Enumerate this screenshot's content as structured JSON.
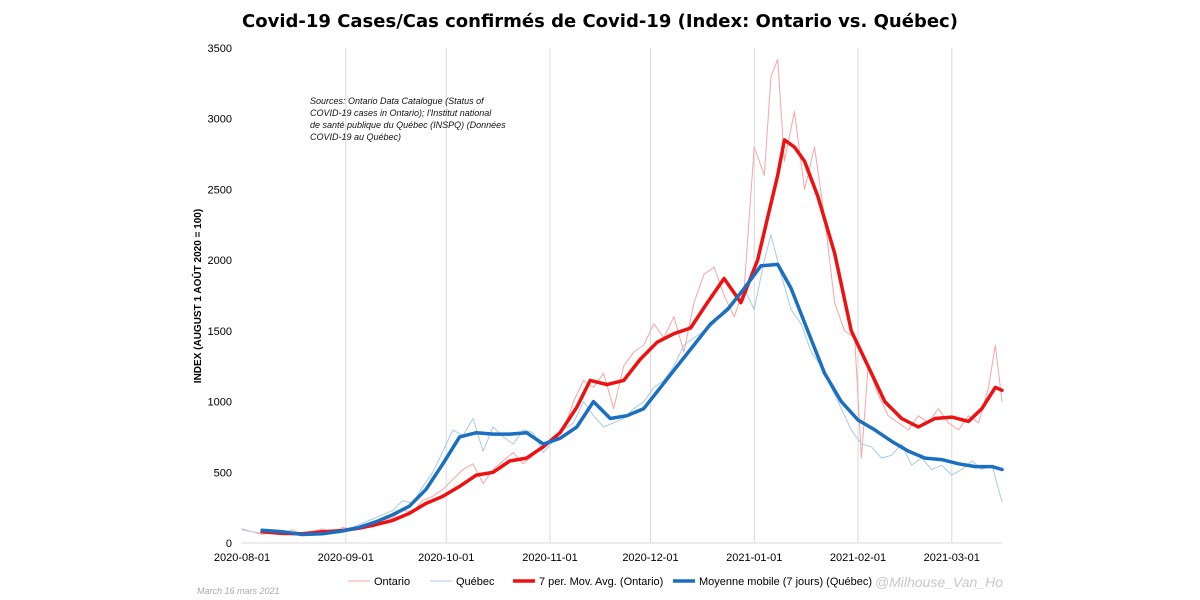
{
  "chart_data": {
    "type": "line",
    "title": "Covid-19 Cases/Cas confirmés de Covid-19 (Index: Ontario vs. Québec)",
    "ylabel": "INDEX (AUGUST 1 AOÛT 2020 = 100)",
    "xlabel": "",
    "ylim": [
      0,
      3500
    ],
    "xlim": [
      "2020-08-01",
      "2021-03-16"
    ],
    "yticks": [
      0,
      500,
      1000,
      1500,
      2000,
      2500,
      3000,
      3500
    ],
    "xticks": [
      "2020-08-01",
      "2020-09-01",
      "2020-10-01",
      "2020-11-01",
      "2020-12-01",
      "2021-01-01",
      "2021-02-01",
      "2021-03-01"
    ],
    "grid": "vertical",
    "legend_position": "bottom",
    "source_note": "Sources: Ontario Data Catalogue (Status of COVID-19 cases in Ontario); l'Institut national de santé publique du Québec (INSPQ) (Données COVID-19 au Québec)",
    "date_note": "March 16 mars 2021",
    "credit": "@Milhouse_Van_Ho",
    "colors": {
      "ontario_daily": "#f4a6a6",
      "quebec_daily": "#a9c9e8",
      "ontario_avg": "#ee1111",
      "quebec_avg": "#1a6fc0"
    },
    "series": [
      {
        "name": "Ontario",
        "key": "ontario_daily",
        "width": 1,
        "points": [
          [
            "2020-08-01",
            100
          ],
          [
            "2020-08-04",
            80
          ],
          [
            "2020-08-07",
            60
          ],
          [
            "2020-08-10",
            90
          ],
          [
            "2020-08-13",
            60
          ],
          [
            "2020-08-16",
            95
          ],
          [
            "2020-08-19",
            55
          ],
          [
            "2020-08-22",
            80
          ],
          [
            "2020-08-25",
            100
          ],
          [
            "2020-08-28",
            70
          ],
          [
            "2020-08-31",
            110
          ],
          [
            "2020-09-03",
            95
          ],
          [
            "2020-09-06",
            130
          ],
          [
            "2020-09-09",
            110
          ],
          [
            "2020-09-12",
            160
          ],
          [
            "2020-09-15",
            180
          ],
          [
            "2020-09-18",
            230
          ],
          [
            "2020-09-21",
            220
          ],
          [
            "2020-09-24",
            300
          ],
          [
            "2020-09-27",
            330
          ],
          [
            "2020-09-30",
            380
          ],
          [
            "2020-10-03",
            450
          ],
          [
            "2020-10-06",
            520
          ],
          [
            "2020-10-09",
            560
          ],
          [
            "2020-10-12",
            420
          ],
          [
            "2020-10-15",
            520
          ],
          [
            "2020-10-18",
            580
          ],
          [
            "2020-10-21",
            640
          ],
          [
            "2020-10-24",
            560
          ],
          [
            "2020-10-27",
            620
          ],
          [
            "2020-10-30",
            700
          ],
          [
            "2020-11-02",
            720
          ],
          [
            "2020-11-05",
            800
          ],
          [
            "2020-11-08",
            1000
          ],
          [
            "2020-11-11",
            1150
          ],
          [
            "2020-11-14",
            1100
          ],
          [
            "2020-11-17",
            1200
          ],
          [
            "2020-11-20",
            950
          ],
          [
            "2020-11-23",
            1250
          ],
          [
            "2020-11-26",
            1350
          ],
          [
            "2020-11-29",
            1400
          ],
          [
            "2020-12-02",
            1550
          ],
          [
            "2020-12-05",
            1450
          ],
          [
            "2020-12-08",
            1600
          ],
          [
            "2020-12-11",
            1350
          ],
          [
            "2020-12-14",
            1700
          ],
          [
            "2020-12-17",
            1900
          ],
          [
            "2020-12-20",
            1950
          ],
          [
            "2020-12-23",
            1750
          ],
          [
            "2020-12-26",
            1600
          ],
          [
            "2020-12-29",
            1800
          ],
          [
            "2021-01-01",
            2800
          ],
          [
            "2021-01-04",
            2600
          ],
          [
            "2021-01-06",
            3300
          ],
          [
            "2021-01-08",
            3420
          ],
          [
            "2021-01-10",
            2700
          ],
          [
            "2021-01-13",
            3050
          ],
          [
            "2021-01-16",
            2500
          ],
          [
            "2021-01-19",
            2800
          ],
          [
            "2021-01-22",
            2300
          ],
          [
            "2021-01-25",
            1700
          ],
          [
            "2021-01-28",
            1500
          ],
          [
            "2021-01-31",
            1450
          ],
          [
            "2021-02-02",
            600
          ],
          [
            "2021-02-04",
            1250
          ],
          [
            "2021-02-07",
            1050
          ],
          [
            "2021-02-10",
            900
          ],
          [
            "2021-02-13",
            850
          ],
          [
            "2021-02-16",
            800
          ],
          [
            "2021-02-19",
            900
          ],
          [
            "2021-02-22",
            850
          ],
          [
            "2021-02-25",
            950
          ],
          [
            "2021-02-28",
            850
          ],
          [
            "2021-03-03",
            800
          ],
          [
            "2021-03-06",
            900
          ],
          [
            "2021-03-09",
            850
          ],
          [
            "2021-03-12",
            1100
          ],
          [
            "2021-03-14",
            1400
          ],
          [
            "2021-03-16",
            1000
          ]
        ]
      },
      {
        "name": "Québec",
        "key": "quebec_daily",
        "width": 1,
        "points": [
          [
            "2020-08-01",
            95
          ],
          [
            "2020-08-04",
            80
          ],
          [
            "2020-08-07",
            70
          ],
          [
            "2020-08-10",
            75
          ],
          [
            "2020-08-13",
            60
          ],
          [
            "2020-08-16",
            70
          ],
          [
            "2020-08-19",
            55
          ],
          [
            "2020-08-22",
            65
          ],
          [
            "2020-08-25",
            80
          ],
          [
            "2020-08-28",
            75
          ],
          [
            "2020-08-31",
            100
          ],
          [
            "2020-09-03",
            110
          ],
          [
            "2020-09-06",
            140
          ],
          [
            "2020-09-09",
            170
          ],
          [
            "2020-09-12",
            200
          ],
          [
            "2020-09-15",
            230
          ],
          [
            "2020-09-18",
            300
          ],
          [
            "2020-09-21",
            280
          ],
          [
            "2020-09-24",
            400
          ],
          [
            "2020-09-27",
            500
          ],
          [
            "2020-09-30",
            650
          ],
          [
            "2020-10-03",
            800
          ],
          [
            "2020-10-06",
            760
          ],
          [
            "2020-10-09",
            880
          ],
          [
            "2020-10-12",
            650
          ],
          [
            "2020-10-15",
            820
          ],
          [
            "2020-10-18",
            750
          ],
          [
            "2020-10-21",
            700
          ],
          [
            "2020-10-24",
            800
          ],
          [
            "2020-10-27",
            780
          ],
          [
            "2020-10-30",
            640
          ],
          [
            "2020-11-02",
            720
          ],
          [
            "2020-11-05",
            800
          ],
          [
            "2020-11-08",
            850
          ],
          [
            "2020-11-11",
            1000
          ],
          [
            "2020-11-14",
            900
          ],
          [
            "2020-11-17",
            820
          ],
          [
            "2020-11-20",
            850
          ],
          [
            "2020-11-23",
            880
          ],
          [
            "2020-11-26",
            950
          ],
          [
            "2020-11-29",
            1000
          ],
          [
            "2020-12-02",
            1100
          ],
          [
            "2020-12-05",
            1150
          ],
          [
            "2020-12-08",
            1250
          ],
          [
            "2020-12-11",
            1400
          ],
          [
            "2020-12-14",
            1450
          ],
          [
            "2020-12-17",
            1500
          ],
          [
            "2020-12-20",
            1550
          ],
          [
            "2020-12-23",
            1650
          ],
          [
            "2020-12-26",
            1700
          ],
          [
            "2020-12-29",
            1800
          ],
          [
            "2021-01-01",
            1650
          ],
          [
            "2021-01-04",
            2000
          ],
          [
            "2021-01-06",
            2180
          ],
          [
            "2021-01-09",
            1900
          ],
          [
            "2021-01-12",
            1650
          ],
          [
            "2021-01-15",
            1550
          ],
          [
            "2021-01-18",
            1350
          ],
          [
            "2021-01-21",
            1250
          ],
          [
            "2021-01-24",
            1100
          ],
          [
            "2021-01-27",
            950
          ],
          [
            "2021-01-30",
            800
          ],
          [
            "2021-02-02",
            700
          ],
          [
            "2021-02-05",
            680
          ],
          [
            "2021-02-08",
            600
          ],
          [
            "2021-02-11",
            620
          ],
          [
            "2021-02-14",
            700
          ],
          [
            "2021-02-17",
            550
          ],
          [
            "2021-02-20",
            600
          ],
          [
            "2021-02-23",
            520
          ],
          [
            "2021-02-26",
            550
          ],
          [
            "2021-03-01",
            480
          ],
          [
            "2021-03-04",
            520
          ],
          [
            "2021-03-07",
            580
          ],
          [
            "2021-03-10",
            520
          ],
          [
            "2021-03-13",
            550
          ],
          [
            "2021-03-16",
            290
          ]
        ]
      },
      {
        "name": "7 per. Mov. Avg. (Ontario)",
        "key": "ontario_avg",
        "width": 3.5,
        "points": [
          [
            "2020-08-07",
            80
          ],
          [
            "2020-08-13",
            68
          ],
          [
            "2020-08-19",
            65
          ],
          [
            "2020-08-25",
            80
          ],
          [
            "2020-08-31",
            88
          ],
          [
            "2020-09-05",
            105
          ],
          [
            "2020-09-10",
            130
          ],
          [
            "2020-09-15",
            160
          ],
          [
            "2020-09-20",
            210
          ],
          [
            "2020-09-25",
            280
          ],
          [
            "2020-09-30",
            330
          ],
          [
            "2020-10-05",
            400
          ],
          [
            "2020-10-10",
            480
          ],
          [
            "2020-10-15",
            500
          ],
          [
            "2020-10-20",
            580
          ],
          [
            "2020-10-25",
            600
          ],
          [
            "2020-10-30",
            680
          ],
          [
            "2020-11-04",
            780
          ],
          [
            "2020-11-09",
            960
          ],
          [
            "2020-11-13",
            1150
          ],
          [
            "2020-11-18",
            1120
          ],
          [
            "2020-11-23",
            1150
          ],
          [
            "2020-11-28",
            1300
          ],
          [
            "2020-12-03",
            1420
          ],
          [
            "2020-12-08",
            1480
          ],
          [
            "2020-12-13",
            1520
          ],
          [
            "2020-12-18",
            1700
          ],
          [
            "2020-12-23",
            1870
          ],
          [
            "2020-12-28",
            1700
          ],
          [
            "2021-01-02",
            2000
          ],
          [
            "2021-01-05",
            2300
          ],
          [
            "2021-01-08",
            2600
          ],
          [
            "2021-01-10",
            2850
          ],
          [
            "2021-01-13",
            2800
          ],
          [
            "2021-01-16",
            2700
          ],
          [
            "2021-01-20",
            2450
          ],
          [
            "2021-01-25",
            2050
          ],
          [
            "2021-01-30",
            1500
          ],
          [
            "2021-02-04",
            1250
          ],
          [
            "2021-02-09",
            1000
          ],
          [
            "2021-02-14",
            880
          ],
          [
            "2021-02-19",
            820
          ],
          [
            "2021-02-24",
            880
          ],
          [
            "2021-03-01",
            890
          ],
          [
            "2021-03-06",
            860
          ],
          [
            "2021-03-10",
            950
          ],
          [
            "2021-03-14",
            1100
          ],
          [
            "2021-03-16",
            1080
          ]
        ]
      },
      {
        "name": "Moyenne mobile (7 jours) (Québec)",
        "key": "quebec_avg",
        "width": 3.5,
        "points": [
          [
            "2020-08-07",
            90
          ],
          [
            "2020-08-13",
            80
          ],
          [
            "2020-08-19",
            60
          ],
          [
            "2020-08-25",
            65
          ],
          [
            "2020-08-31",
            85
          ],
          [
            "2020-09-05",
            110
          ],
          [
            "2020-09-10",
            150
          ],
          [
            "2020-09-15",
            200
          ],
          [
            "2020-09-20",
            260
          ],
          [
            "2020-09-25",
            380
          ],
          [
            "2020-09-30",
            560
          ],
          [
            "2020-10-05",
            750
          ],
          [
            "2020-10-10",
            780
          ],
          [
            "2020-10-15",
            770
          ],
          [
            "2020-10-20",
            770
          ],
          [
            "2020-10-25",
            780
          ],
          [
            "2020-10-30",
            700
          ],
          [
            "2020-11-04",
            740
          ],
          [
            "2020-11-09",
            820
          ],
          [
            "2020-11-14",
            1000
          ],
          [
            "2020-11-19",
            880
          ],
          [
            "2020-11-24",
            900
          ],
          [
            "2020-11-29",
            950
          ],
          [
            "2020-12-04",
            1100
          ],
          [
            "2020-12-09",
            1250
          ],
          [
            "2020-12-14",
            1400
          ],
          [
            "2020-12-19",
            1550
          ],
          [
            "2020-12-24",
            1650
          ],
          [
            "2020-12-29",
            1800
          ],
          [
            "2021-01-03",
            1960
          ],
          [
            "2021-01-08",
            1970
          ],
          [
            "2021-01-12",
            1800
          ],
          [
            "2021-01-17",
            1500
          ],
          [
            "2021-01-22",
            1200
          ],
          [
            "2021-01-27",
            1000
          ],
          [
            "2021-02-01",
            870
          ],
          [
            "2021-02-06",
            800
          ],
          [
            "2021-02-11",
            720
          ],
          [
            "2021-02-16",
            650
          ],
          [
            "2021-02-21",
            600
          ],
          [
            "2021-02-26",
            590
          ],
          [
            "2021-03-03",
            560
          ],
          [
            "2021-03-08",
            540
          ],
          [
            "2021-03-13",
            540
          ],
          [
            "2021-03-16",
            520
          ]
        ]
      }
    ]
  }
}
